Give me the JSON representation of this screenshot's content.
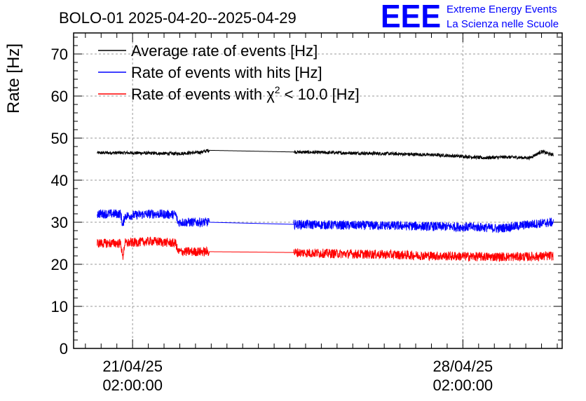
{
  "chart_data": {
    "type": "line",
    "title": "BOLO-01 2025-04-20--2025-04-29",
    "ylabel": "Rate [Hz]",
    "xlabel": "",
    "ylim": [
      0,
      75
    ],
    "yticks": [
      0,
      10,
      20,
      30,
      40,
      50,
      60,
      70
    ],
    "xlim": [
      "2025-04-19 20:00",
      "2025-04-30 04:30"
    ],
    "xticks": [
      {
        "x": "2025-04-21 02:00",
        "date": "21/04/25",
        "time": "02:00:00"
      },
      {
        "x": "2025-04-28 02:00",
        "date": "28/04/25",
        "time": "02:00:00"
      }
    ],
    "grid": true,
    "legend_position": "top-left",
    "data_gap": [
      "2025-04-22 17:00",
      "2025-04-24 12:00"
    ],
    "series": [
      {
        "name": "Average rate of events [Hz]",
        "label_main": "Average rate of events [Hz]",
        "label_sup": "",
        "label_tail": "",
        "color": "#000000",
        "noise": 0.4,
        "x": [
          "2025-04-20 08:00",
          "2025-04-21 00:00",
          "2025-04-21 12:00",
          "2025-04-22 00:00",
          "2025-04-22 12:00",
          "2025-04-22 17:00",
          "2025-04-24 12:00",
          "2025-04-25 12:00",
          "2025-04-26 12:00",
          "2025-04-27 12:00",
          "2025-04-28 04:00",
          "2025-04-28 12:00",
          "2025-04-29 00:00",
          "2025-04-29 12:00",
          "2025-04-29 18:00",
          "2025-04-30 00:00"
        ],
        "y": [
          46.5,
          46.5,
          46.4,
          46.3,
          46.6,
          47.1,
          46.7,
          46.5,
          46.3,
          46.0,
          45.6,
          45.3,
          45.5,
          45.3,
          46.8,
          46.0
        ]
      },
      {
        "name": "Rate of events with hits [Hz]",
        "label_main": "Rate of events with hits [Hz]",
        "label_sup": "",
        "label_tail": "",
        "color": "#0000ff",
        "noise": 1.1,
        "x": [
          "2025-04-20 08:00",
          "2025-04-20 20:00",
          "2025-04-20 21:00",
          "2025-04-20 22:00",
          "2025-04-21 12:00",
          "2025-04-22 00:00",
          "2025-04-22 01:00",
          "2025-04-22 17:00",
          "2025-04-24 12:00",
          "2025-04-25 12:00",
          "2025-04-26 12:00",
          "2025-04-27 12:00",
          "2025-04-28 12:00",
          "2025-04-28 20:00",
          "2025-04-29 12:00",
          "2025-04-30 00:00"
        ],
        "y": [
          32.0,
          32.0,
          29.0,
          31.5,
          32.0,
          31.8,
          30.0,
          30.0,
          29.5,
          29.3,
          29.2,
          29.0,
          28.8,
          28.5,
          29.5,
          30.0
        ]
      },
      {
        "name": "Rate of events with χ2 < 10.0 [Hz]",
        "label_main": "Rate of events with χ",
        "label_sup": "2",
        "label_tail": " < 10.0 [Hz]",
        "color": "#ff0000",
        "noise": 1.1,
        "x": [
          "2025-04-20 08:00",
          "2025-04-20 20:00",
          "2025-04-20 21:00",
          "2025-04-20 22:00",
          "2025-04-21 12:00",
          "2025-04-22 00:00",
          "2025-04-22 01:00",
          "2025-04-22 17:00",
          "2025-04-24 12:00",
          "2025-04-25 12:00",
          "2025-04-26 12:00",
          "2025-04-27 12:00",
          "2025-04-28 12:00",
          "2025-04-29 12:00",
          "2025-04-30 00:00"
        ],
        "y": [
          25.0,
          25.0,
          21.5,
          25.0,
          25.5,
          25.0,
          23.0,
          23.0,
          22.8,
          22.5,
          22.3,
          22.0,
          21.8,
          21.8,
          22.0
        ]
      }
    ]
  },
  "logo": {
    "text": "EEE",
    "line1": "Extreme Energy Events",
    "line2": "La Scienza nelle Scuole",
    "color": "#0000ff"
  }
}
